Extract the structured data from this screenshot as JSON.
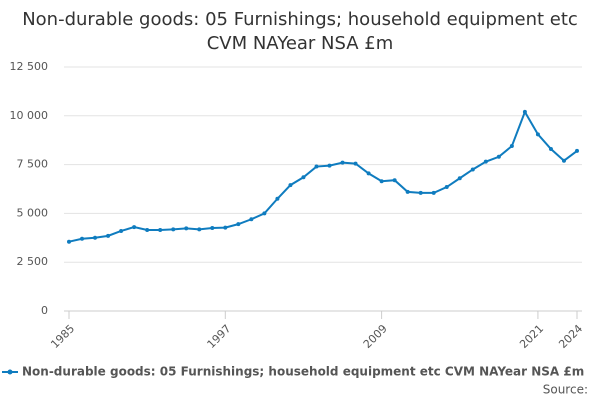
{
  "chart_data": {
    "type": "line",
    "title": "Non-durable goods: 05 Furnishings; household equipment etc CVM NAYear NSA £m",
    "x": [
      1985,
      1986,
      1987,
      1988,
      1989,
      1990,
      1991,
      1992,
      1993,
      1994,
      1995,
      1996,
      1997,
      1998,
      1999,
      2000,
      2001,
      2002,
      2003,
      2004,
      2005,
      2006,
      2007,
      2008,
      2009,
      2010,
      2011,
      2012,
      2013,
      2014,
      2015,
      2016,
      2017,
      2018,
      2019,
      2020,
      2021,
      2022,
      2023,
      2024
    ],
    "series": [
      {
        "name": "Non-durable goods: 05 Furnishings; household equipment etc CVM NAYear NSA £m",
        "color": "#0f7cbf",
        "values": [
          3550,
          3700,
          3750,
          3850,
          4100,
          4300,
          4150,
          4150,
          4180,
          4230,
          4180,
          4250,
          4270,
          4450,
          4700,
          5000,
          5750,
          6450,
          6850,
          7400,
          7450,
          7600,
          7550,
          7050,
          6650,
          6700,
          6100,
          6050,
          6050,
          6350,
          6800,
          7250,
          7650,
          7900,
          8450,
          10200,
          9050,
          8300,
          7700,
          8200
        ]
      }
    ],
    "xlim": [
      1985,
      2024
    ],
    "xticks": [
      1985,
      1997,
      2009,
      2021,
      2024
    ],
    "ylim": [
      0,
      12500
    ],
    "yticks": [
      0,
      {
        "value": 2500,
        "label": "2 500"
      },
      {
        "value": 5000,
        "label": "5 000"
      },
      {
        "value": 7500,
        "label": "7 500"
      },
      {
        "value": 10000,
        "label": "10 000"
      },
      {
        "value": 12500,
        "label": "12 500"
      }
    ],
    "grid": true,
    "source": "Source:"
  }
}
